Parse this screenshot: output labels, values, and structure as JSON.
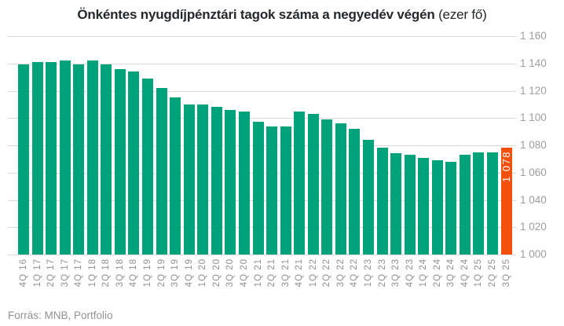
{
  "chart": {
    "title_bold": "Önkéntes nyugdíjpénztári tagok száma a negyedév végén",
    "title_unit": " (ezer fő)"
  },
  "footer": {
    "source": "Forrás: MNB, Portfolio"
  },
  "chart_data": {
    "type": "bar",
    "title": "Önkéntes nyugdíjpénztári tagok száma a negyedév végén (ezer fő)",
    "xlabel": "",
    "ylabel": "",
    "categories": [
      "4Q 16",
      "1Q 17",
      "2Q 17",
      "3Q 17",
      "4Q 17",
      "1Q 18",
      "2Q 18",
      "3Q 18",
      "4Q 18",
      "1Q 19",
      "2Q 19",
      "3Q 19",
      "4Q 19",
      "1Q 20",
      "2Q 20",
      "3Q 20",
      "4Q 20",
      "1Q 21",
      "2Q 21",
      "3Q 21",
      "4Q 21",
      "1Q 22",
      "2Q 22",
      "3Q 22",
      "4Q 22",
      "1Q 23",
      "2Q 23",
      "3Q 23",
      "4Q 23",
      "1Q 24",
      "2Q 24",
      "3Q 24",
      "4Q 24",
      "1Q 25",
      "2Q 25",
      "3Q 25"
    ],
    "values": [
      1139,
      1141,
      1141,
      1142,
      1139,
      1142,
      1139,
      1136,
      1134,
      1129,
      1122,
      1115,
      1110,
      1110,
      1108,
      1106,
      1105,
      1097,
      1094,
      1094,
      1105,
      1103,
      1099,
      1096,
      1092,
      1084,
      1078,
      1074,
      1073,
      1071,
      1069,
      1068,
      1073,
      1075,
      1075,
      1078
    ],
    "ylim": [
      1000,
      1160
    ],
    "ytick_step": 20,
    "ytick_labels": [
      "1 000",
      "1 020",
      "1 040",
      "1 060",
      "1 080",
      "1 100",
      "1 120",
      "1 140",
      "1 160"
    ],
    "yaxis_side": "right",
    "grid": true,
    "legend": null,
    "bar_color": "#00A27C",
    "highlight_index": 35,
    "highlight_color": "#F2500C",
    "highlight_label": "1 078"
  }
}
